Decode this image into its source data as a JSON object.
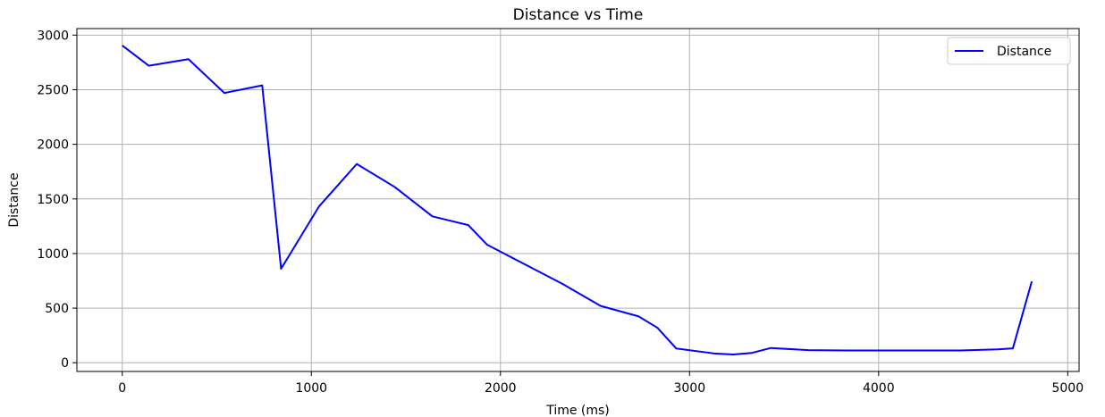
{
  "chart_data": {
    "type": "line",
    "title": "Distance vs Time",
    "xlabel": "Time (ms)",
    "ylabel": "Distance",
    "xlim": [
      -240,
      5060
    ],
    "ylim": [
      -80,
      3060
    ],
    "xticks": [
      0,
      1000,
      2000,
      3000,
      4000,
      5000
    ],
    "yticks": [
      0,
      500,
      1000,
      1500,
      2000,
      2500,
      3000
    ],
    "grid": true,
    "legend_position": "top-right",
    "series": [
      {
        "name": "Distance",
        "color": "#0000ff",
        "x": [
          0,
          140,
          350,
          540,
          740,
          840,
          1040,
          1240,
          1440,
          1640,
          1830,
          1930,
          2130,
          2330,
          2530,
          2730,
          2830,
          2930,
          3130,
          3230,
          3330,
          3430,
          3630,
          3830,
          4030,
          4230,
          4430,
          4630,
          4710,
          4810
        ],
        "y": [
          2905,
          2720,
          2780,
          2470,
          2540,
          860,
          1430,
          1820,
          1610,
          1340,
          1260,
          1080,
          900,
          720,
          520,
          425,
          320,
          130,
          85,
          75,
          90,
          135,
          115,
          112,
          112,
          112,
          112,
          122,
          132,
          745
        ]
      }
    ]
  }
}
